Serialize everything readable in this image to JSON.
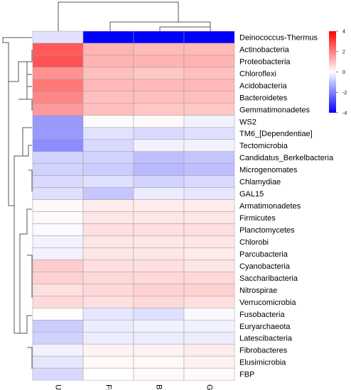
{
  "chart_data": {
    "type": "heatmap",
    "columns": [
      "UL",
      "FL",
      "BL",
      "GL"
    ],
    "rows": [
      {
        "label": "Deinococcus-Thermus",
        "values": [
          -0.45,
          -4.0,
          -4.0,
          -4.0
        ]
      },
      {
        "label": "Actinobacteria",
        "values": [
          2.6,
          1.2,
          1.1,
          1.1
        ]
      },
      {
        "label": "Proteobacteria",
        "values": [
          2.7,
          1.2,
          1.2,
          1.2
        ]
      },
      {
        "label": "Chloroflexi",
        "values": [
          1.7,
          1.0,
          0.9,
          1.0
        ]
      },
      {
        "label": "Acidobacteria",
        "values": [
          2.1,
          1.1,
          1.1,
          1.1
        ]
      },
      {
        "label": "Bacteroidetes",
        "values": [
          1.9,
          1.0,
          1.0,
          1.0
        ]
      },
      {
        "label": "Gemmatimonadetes",
        "values": [
          1.6,
          1.0,
          0.9,
          0.9
        ]
      },
      {
        "label": "WS2",
        "values": [
          -1.6,
          -0.05,
          0.1,
          -0.2
        ]
      },
      {
        "label": "TM6_[Dependentiae]",
        "values": [
          -1.6,
          -0.45,
          -0.6,
          -0.5
        ]
      },
      {
        "label": "Tectomicrobia",
        "values": [
          -1.8,
          -0.6,
          -0.2,
          -0.2
        ]
      },
      {
        "label": "Candidatus_Berkelbacteria",
        "values": [
          -0.7,
          -0.7,
          -1.0,
          -0.9
        ]
      },
      {
        "label": "Microgenomates",
        "values": [
          -0.7,
          -0.8,
          -1.1,
          -1.0
        ]
      },
      {
        "label": "Chlamydiae",
        "values": [
          -0.6,
          -0.5,
          -0.7,
          -0.6
        ]
      },
      {
        "label": "GAL15",
        "values": [
          -0.5,
          -0.9,
          -0.3,
          -0.4
        ]
      },
      {
        "label": "Armatimonadetes",
        "values": [
          0.1,
          0.3,
          0.3,
          0.3
        ]
      },
      {
        "label": "Firmicutes",
        "values": [
          0.1,
          0.4,
          0.4,
          0.4
        ]
      },
      {
        "label": "Planctomycetes",
        "values": [
          -0.1,
          0.5,
          0.5,
          0.5
        ]
      },
      {
        "label": "Chlorobi",
        "values": [
          -0.2,
          0.4,
          0.4,
          0.4
        ]
      },
      {
        "label": "Parcubacteria",
        "values": [
          -0.2,
          0.4,
          0.4,
          0.3
        ]
      },
      {
        "label": "Cyanobacteria",
        "values": [
          0.8,
          0.5,
          0.5,
          0.4
        ]
      },
      {
        "label": "Saccharibacteria",
        "values": [
          0.7,
          0.6,
          0.6,
          0.6
        ]
      },
      {
        "label": "Nitrospirae",
        "values": [
          0.5,
          0.6,
          0.7,
          0.7
        ]
      },
      {
        "label": "Verrucomicrobia",
        "values": [
          0.6,
          0.5,
          0.6,
          0.5
        ]
      },
      {
        "label": "Fusobacteria",
        "values": [
          0.05,
          -0.4,
          -0.5,
          -0.1
        ]
      },
      {
        "label": "Euryarchaeota",
        "values": [
          -0.8,
          -0.3,
          -0.2,
          -0.2
        ]
      },
      {
        "label": "Latescibacteria",
        "values": [
          -0.7,
          -0.3,
          -0.3,
          -0.3
        ]
      },
      {
        "label": "Fibrobacteres",
        "values": [
          -0.2,
          0.2,
          0.2,
          0.3
        ]
      },
      {
        "label": "Elusimicrobia",
        "values": [
          -0.4,
          0.1,
          0.1,
          0.2
        ]
      },
      {
        "label": "FBP",
        "values": [
          -0.6,
          0.0,
          0.1,
          0.1
        ]
      }
    ],
    "color_scale": {
      "min": -4,
      "max": 4,
      "low_color": "#0000ff",
      "mid_color": "#ffffff",
      "high_color": "#ff0000"
    },
    "legend_ticks": [
      "4",
      "2",
      "0",
      "-2",
      "-4"
    ],
    "legend_position": "top-right"
  }
}
